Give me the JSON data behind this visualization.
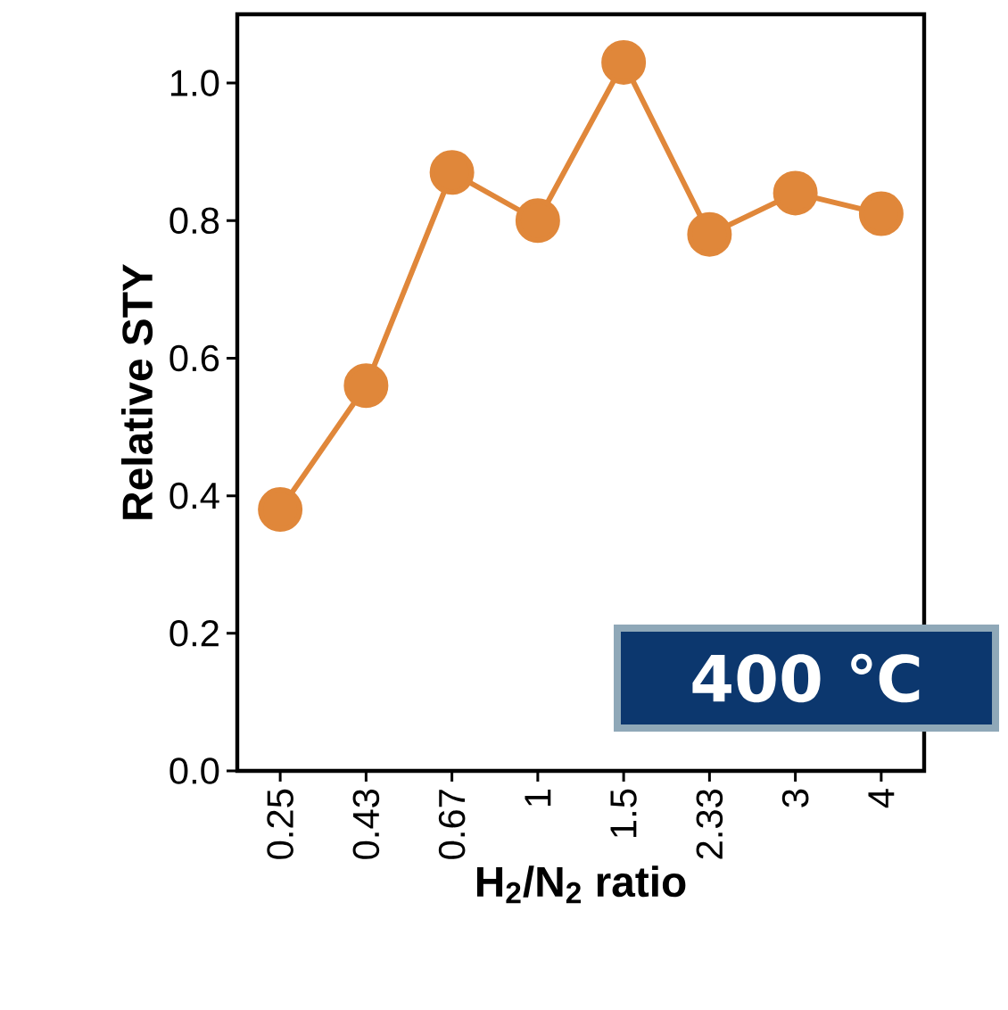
{
  "chart_data": {
    "type": "line",
    "xlabel": "H$_{2}$/N$_{2}$ ratio",
    "ylabel": "Relative STY",
    "categories": [
      "0.25",
      "0.43",
      "0.67",
      "1",
      "1.5",
      "2.33",
      "3",
      "4"
    ],
    "series": [
      {
        "color": "#e0873a",
        "values": [
          0.38,
          0.56,
          0.87,
          0.8,
          1.03,
          0.78,
          0.84,
          0.81
        ]
      }
    ],
    "ylim": [
      0,
      1.1
    ],
    "yticks": [
      {
        "value": 0,
        "label": "0.0"
      },
      0.2,
      0.4,
      0.6,
      0.8,
      {
        "value": 1,
        "label": "1.0"
      }
    ],
    "marker": "circle",
    "line_style": "solid",
    "grid": false,
    "annotations": [
      "400 ℃"
    ]
  }
}
